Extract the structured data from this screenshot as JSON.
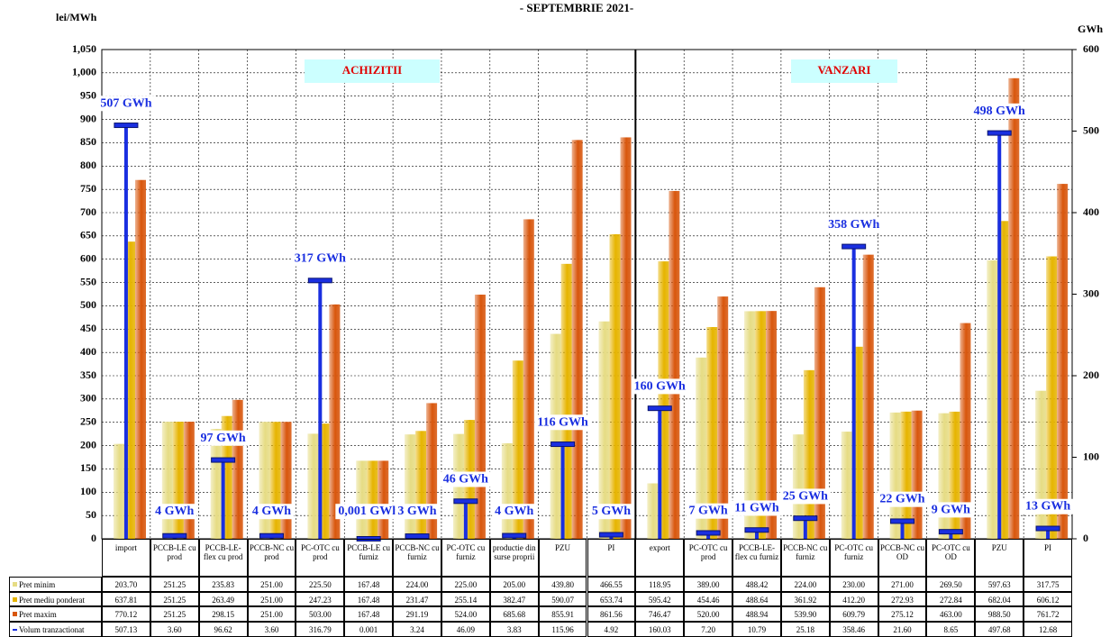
{
  "chart_data": {
    "type": "bar",
    "title": "- SEPTEMBRIE 2021-",
    "y_label": "lei/MWh",
    "y2_label": "GWh",
    "sections": [
      "ACHIZITII",
      "VANZARI"
    ],
    "categories": [
      "import",
      "PCCB-LE cu prod",
      "PCCB-LE-flex cu prod",
      "PCCB-NC cu prod",
      "PC-OTC cu prod",
      "PCCB-LE cu furniz",
      "PCCB-NC cu furniz",
      "PC-OTC cu furniz",
      "productie din surse proprii",
      "PZU",
      "PI",
      "export",
      "PC-OTC cu prod",
      "PCCB-LE-flex cu furniz",
      "PCCB-NC cu furniz",
      "PC-OTC cu furniz",
      "PCCB-NC cu OD",
      "PC-OTC cu OD",
      "PZU",
      "PI"
    ],
    "series": [
      {
        "name": "Pret minim",
        "color": "#e6dc84",
        "values": [
          203.7,
          251.25,
          235.83,
          251.0,
          225.5,
          167.48,
          224.0,
          225.0,
          205.0,
          439.8,
          466.55,
          118.95,
          389.0,
          488.42,
          224.0,
          230.0,
          271.0,
          269.5,
          597.63,
          317.75
        ],
        "value_labels": [
          "203.70",
          "251.25",
          "235.83",
          "251.00",
          "225.50",
          "167.48",
          "224.00",
          "225.00",
          "205.00",
          "439.80",
          "466.55",
          "118.95",
          "389.00",
          "488.42",
          "224.00",
          "230.00",
          "271.00",
          "269.50",
          "597.63",
          "317.75"
        ]
      },
      {
        "name": "Pret mediu ponderat",
        "color": "#e6b400",
        "values": [
          637.81,
          251.25,
          263.49,
          251.0,
          247.23,
          167.48,
          231.47,
          255.14,
          382.47,
          590.07,
          653.74,
          595.42,
          454.46,
          488.64,
          361.92,
          412.2,
          272.93,
          272.84,
          682.04,
          606.12
        ],
        "value_labels": [
          "637.81",
          "251.25",
          "263.49",
          "251.00",
          "247.23",
          "167.48",
          "231.47",
          "255.14",
          "382.47",
          "590.07",
          "653.74",
          "595.42",
          "454.46",
          "488.64",
          "361.92",
          "412.20",
          "272.93",
          "272.84",
          "682.04",
          "606.12"
        ]
      },
      {
        "name": "Pret maxim",
        "color": "#d8560c",
        "values": [
          770.12,
          251.25,
          298.15,
          251.0,
          503.0,
          167.48,
          291.19,
          524.0,
          685.68,
          855.91,
          861.56,
          746.47,
          520.0,
          488.94,
          539.9,
          609.79,
          275.12,
          463.0,
          988.5,
          761.72
        ],
        "value_labels": [
          "770.12",
          "251.25",
          "298.15",
          "251.00",
          "503.00",
          "167.48",
          "291.19",
          "524.00",
          "685.68",
          "855.91",
          "861.56",
          "746.47",
          "520.00",
          "488.94",
          "539.90",
          "609.79",
          "275.12",
          "463.00",
          "988.50",
          "761.72"
        ]
      },
      {
        "name": "Volum tranzactionat",
        "color": "#1a2fe0",
        "axis": "y2",
        "values": [
          507.13,
          3.6,
          96.62,
          3.6,
          316.79,
          0.001,
          3.24,
          46.09,
          3.83,
          115.96,
          4.92,
          160.03,
          7.2,
          10.79,
          25.18,
          358.46,
          21.6,
          8.65,
          497.68,
          12.68
        ],
        "value_labels": [
          "507.13",
          "3.60",
          "96.62",
          "3.60",
          "316.79",
          "0.001",
          "3.24",
          "46.09",
          "3.83",
          "115.96",
          "4.92",
          "160.03",
          "7.20",
          "10.79",
          "25.18",
          "358.46",
          "21.60",
          "8.65",
          "497.68",
          "12.68"
        ]
      }
    ],
    "annotations": [
      "507 GWh",
      "4 GWh",
      "97 GWh",
      "4 GWh",
      "317 GWh",
      "0,001 GWh",
      "3 GWh",
      "46 GWh",
      "4 GWh",
      "116 GWh",
      "5 GWh",
      "160 GWh",
      "7 GWh",
      "11 GWh",
      "25 GWh",
      "358 GWh",
      "22 GWh",
      "9 GWh",
      "498 GWh",
      "13 GWh"
    ],
    "ylim": [
      0,
      1050
    ],
    "yticks": [
      0,
      50,
      100,
      150,
      200,
      250,
      300,
      350,
      400,
      450,
      500,
      550,
      600,
      650,
      700,
      750,
      800,
      850,
      900,
      950,
      {
        "value": 1000,
        "label": "1,000"
      },
      {
        "value": 1050,
        "label": "1,050"
      }
    ],
    "y2lim": [
      0,
      600
    ],
    "y2ticks": [
      0,
      100,
      200,
      300,
      400,
      500,
      600
    ],
    "grid": true
  }
}
